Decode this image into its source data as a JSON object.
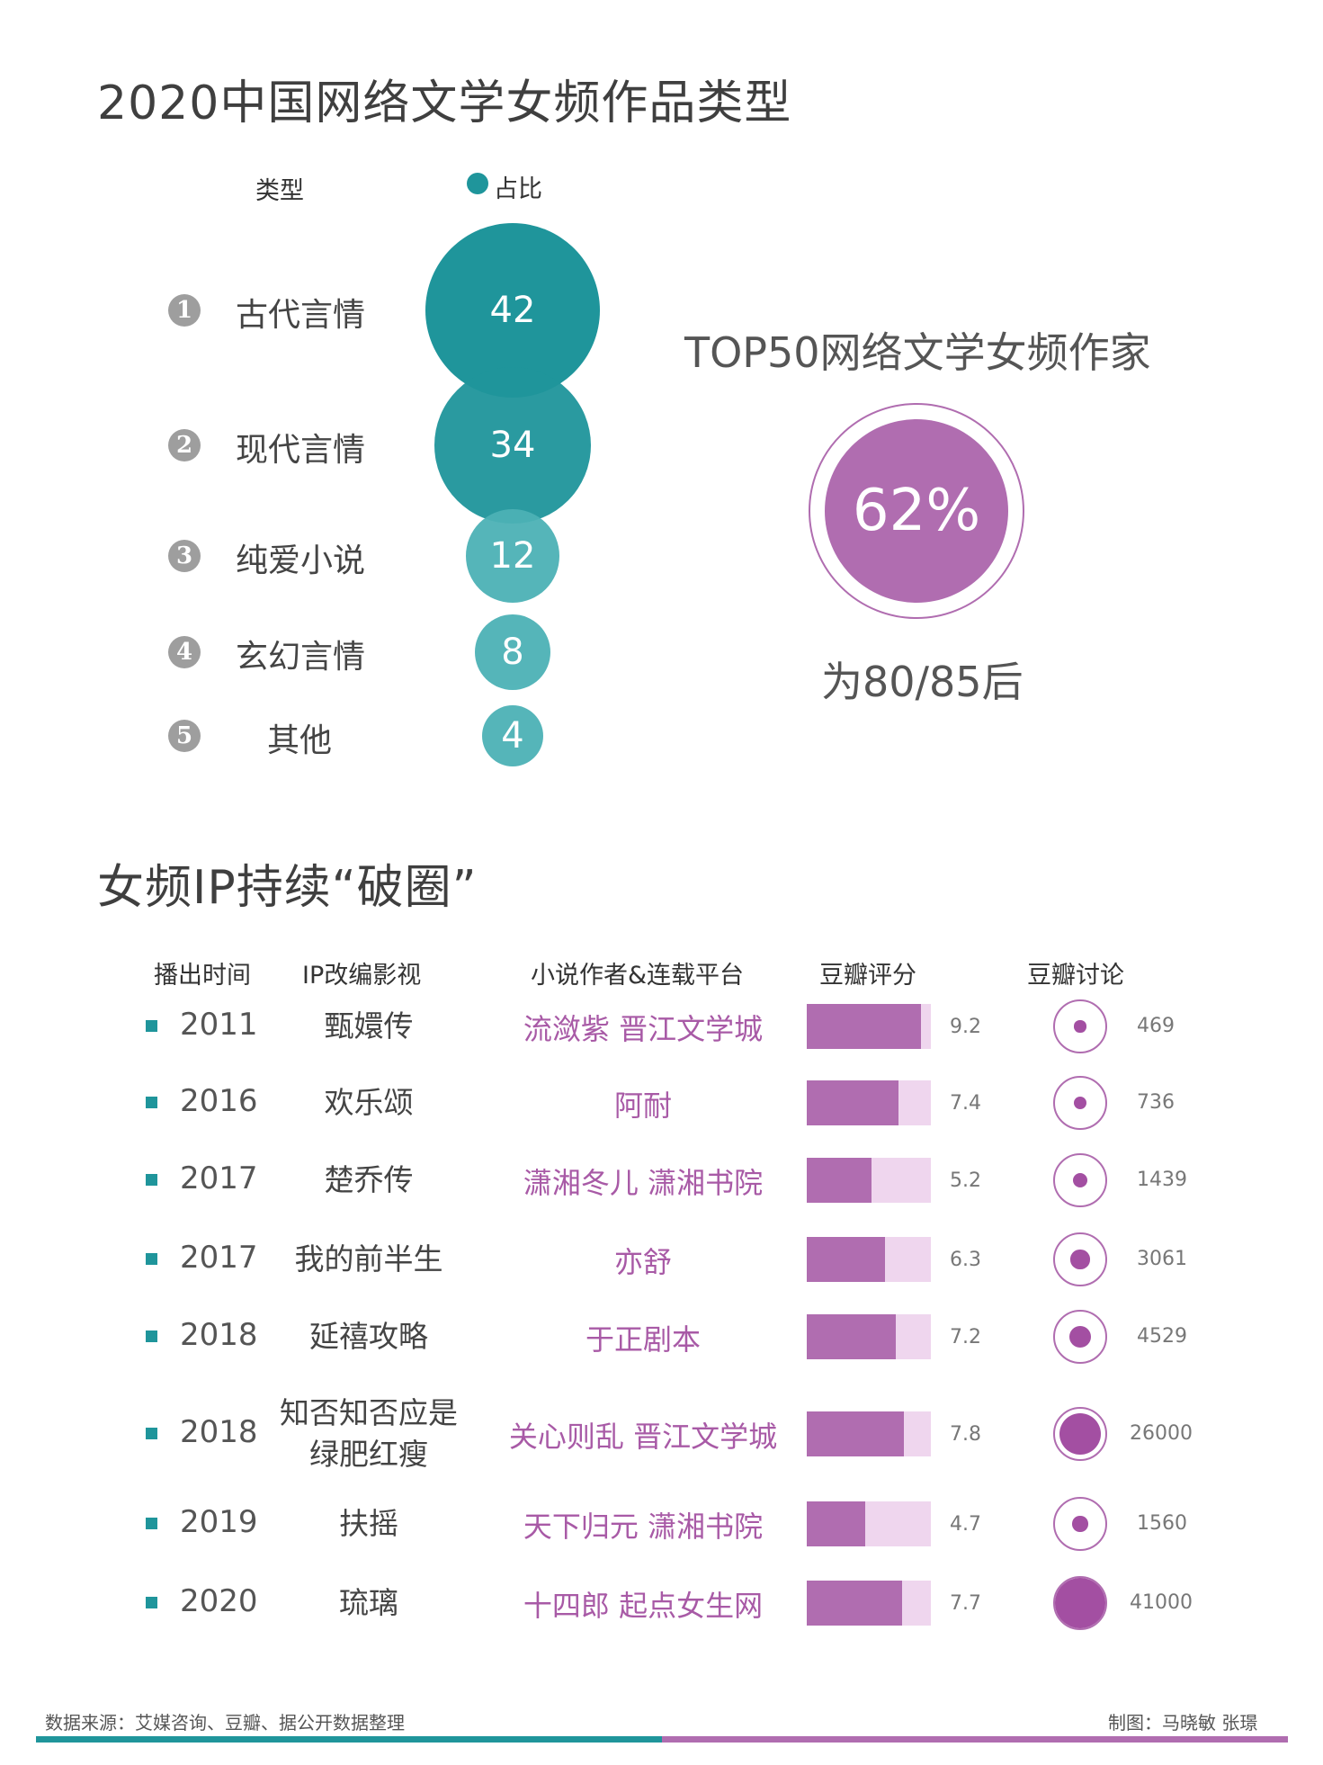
{
  "section1": {
    "title": "2020中国网络文学女频作品类型",
    "header_type": "类型",
    "header_share": "占比"
  },
  "chart_data": [
    {
      "type": "bubble",
      "title": "2020中国网络文学女频作品类型",
      "series": [
        {
          "name": "占比",
          "values": [
            42,
            34,
            12,
            8,
            4
          ]
        }
      ],
      "categories": [
        "古代言情",
        "现代言情",
        "纯爱小说",
        "玄幻言情",
        "其他"
      ],
      "rank_labels": [
        "1",
        "2",
        "3",
        "4",
        "5"
      ]
    },
    {
      "type": "table",
      "title": "女频IP持续“破圈”",
      "columns": [
        "播出时间",
        "IP改编影视",
        "小说作者&连载平台",
        "豆瓣评分",
        "豆瓣讨论"
      ],
      "rows": [
        {
          "year": "2011",
          "show": [
            "甄嬛传"
          ],
          "author": "流潋紫 晋江文学城",
          "score": 9.2,
          "discussion": 469
        },
        {
          "year": "2016",
          "show": [
            "欢乐颂"
          ],
          "author": "阿耐",
          "score": 7.4,
          "discussion": 736
        },
        {
          "year": "2017",
          "show": [
            "楚乔传"
          ],
          "author": "潇湘冬儿 潇湘书院",
          "score": 5.2,
          "discussion": 1439
        },
        {
          "year": "2017",
          "show": [
            "我的前半生"
          ],
          "author": "亦舒",
          "score": 6.3,
          "discussion": 3061
        },
        {
          "year": "2018",
          "show": [
            "延禧攻略"
          ],
          "author": "于正剧本",
          "score": 7.2,
          "discussion": 4529
        },
        {
          "year": "2018",
          "show": [
            "知否知否应是",
            "绿肥红瘦"
          ],
          "author": "关心则乱 晋江文学城",
          "score": 7.8,
          "discussion": 26000
        },
        {
          "year": "2019",
          "show": [
            "扶摇"
          ],
          "author": "天下归元 潇湘书院",
          "score": 4.7,
          "discussion": 1560
        },
        {
          "year": "2020",
          "show": [
            "琉璃"
          ],
          "author": "十四郎 起点女生网",
          "score": 7.7,
          "discussion": 41000
        }
      ],
      "score_max": 10
    }
  ],
  "top50": {
    "title": "TOP50网络文学女频作家",
    "percent": "62%",
    "value": 62,
    "subtitle": "为80/85后"
  },
  "section2": {
    "title": "女频IP持续“破圈”"
  },
  "footer": {
    "source": "数据来源：艾媒咨询、豆瓣、据公开数据整理",
    "credit": "制图：马晓敏 张璟"
  },
  "colors": {
    "teal": "#1f959b",
    "teal_light": "#4cb2b6",
    "purple": "#b06db0",
    "purple_light": "#efd6ee",
    "purple_text": "#a85aa6",
    "gray_num": "#9e9e9e"
  }
}
